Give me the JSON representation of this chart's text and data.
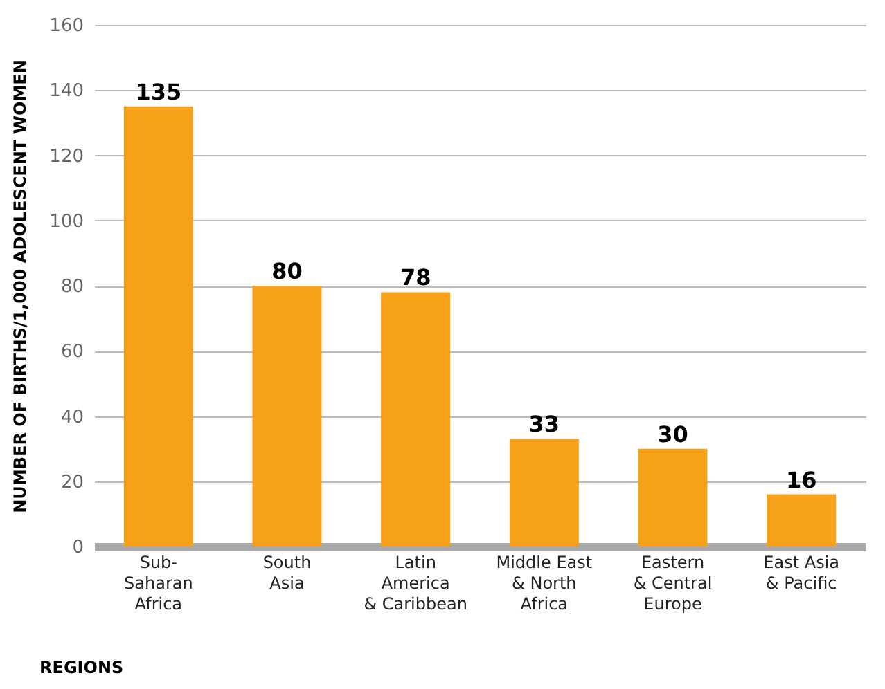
{
  "chart_data": {
    "type": "bar",
    "xlabel": "REGIONS",
    "ylabel": "NUMBER OF BIRTHS/1,000 ADOLESCENT WOMEN",
    "categories": [
      "Sub-\nSaharan\nAfrica",
      "South\nAsia",
      "Latin\nAmerica\n& Caribbean",
      "Middle East\n& North\nAfrica",
      "Eastern\n& Central\nEurope",
      "East Asia\n& Pacific"
    ],
    "values": [
      135,
      80,
      78,
      33,
      30,
      16
    ],
    "color": "#f7a11a",
    "ylim": [
      0,
      160
    ],
    "yticks": [
      0,
      20,
      40,
      60,
      80,
      100,
      120,
      140,
      160
    ],
    "grid": "y",
    "data_labels": true
  }
}
